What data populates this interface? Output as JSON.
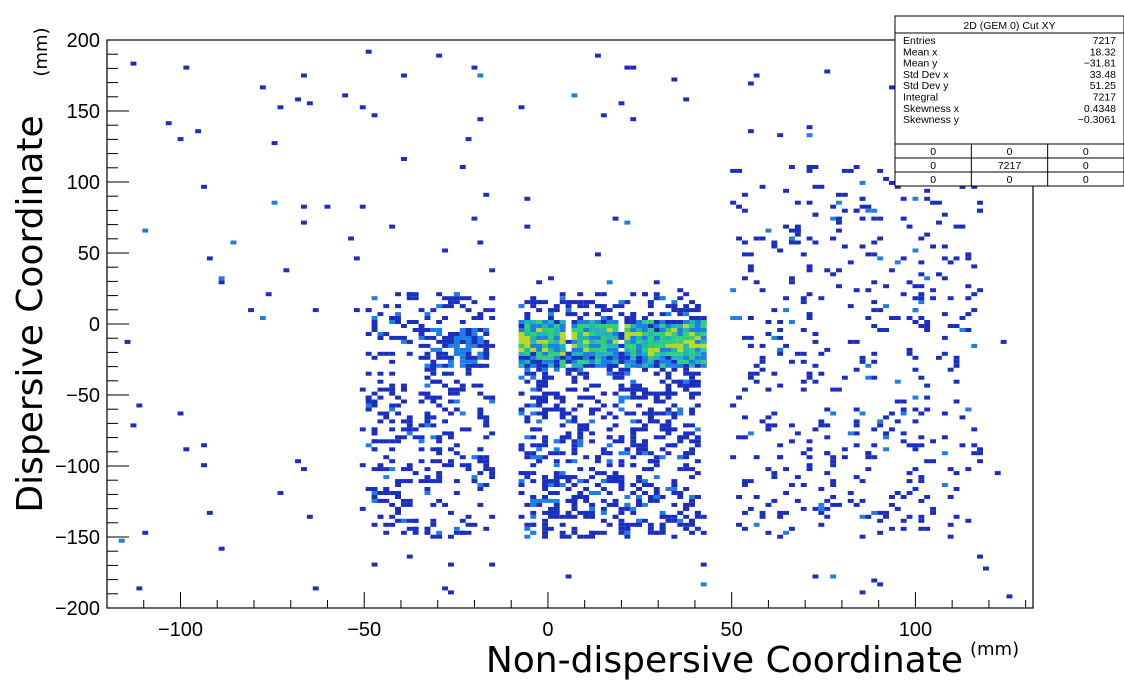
{
  "chart_data": {
    "type": "heatmap",
    "xlabel": "Non-dispersive Coordinate",
    "xunit": "(mm)",
    "ylabel": "Dispersive Coordinate",
    "yunit": "(mm)",
    "xlim": [
      -120,
      132
    ],
    "ylim": [
      -200,
      200
    ],
    "x_ticks": [
      -100,
      -50,
      0,
      50,
      100
    ],
    "y_ticks": [
      -200,
      -150,
      -100,
      -50,
      0,
      50,
      100,
      150,
      200
    ],
    "x_tick_labels": [
      "−100",
      "−50",
      "0",
      "50",
      "100"
    ],
    "y_tick_labels": [
      "−200",
      "−150",
      "−100",
      "−50",
      "0",
      "50",
      "100",
      "150",
      "200"
    ],
    "colormap": [
      "#1a2fbf",
      "#1f7ee6",
      "#22b5b5",
      "#2fd07a",
      "#b8d826"
    ],
    "grid": false,
    "description_regions": [
      {
        "x": [
          -35,
          -15
        ],
        "y": [
          -30,
          -5
        ],
        "density": "high"
      },
      {
        "x": [
          -8,
          42
        ],
        "y": [
          -30,
          0
        ],
        "density": "very high"
      },
      {
        "x": [
          -50,
          -15
        ],
        "y": [
          -150,
          20
        ],
        "density": "medium"
      },
      {
        "x": [
          -8,
          42
        ],
        "y": [
          -150,
          20
        ],
        "density": "medium"
      },
      {
        "x": [
          50,
          115
        ],
        "y": [
          -150,
          110
        ],
        "density": "low"
      }
    ],
    "stats_box": {
      "title": "2D (GEM 0) Cut XY",
      "rows": [
        {
          "label": "Entries",
          "value": "7217"
        },
        {
          "label": "Mean x",
          "value": "18.32"
        },
        {
          "label": "Mean y",
          "value": "−31.81"
        },
        {
          "label": "Std Dev x",
          "value": "33.48"
        },
        {
          "label": "Std Dev y",
          "value": "51.25"
        },
        {
          "label": "Integral",
          "value": "7217"
        },
        {
          "label": "Skewness x",
          "value": "0.4348"
        },
        {
          "label": "Skewness y",
          "value": "−0.3061"
        }
      ],
      "grid": [
        [
          "0",
          "0",
          "0"
        ],
        [
          "0",
          "7217",
          "0"
        ],
        [
          "0",
          "0",
          "0"
        ]
      ]
    }
  }
}
